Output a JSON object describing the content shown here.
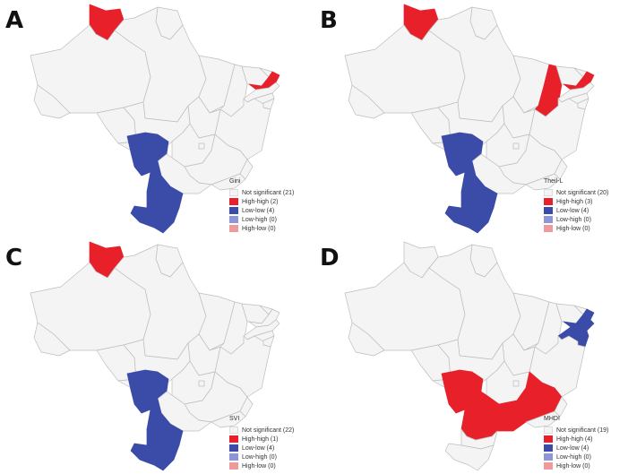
{
  "colors": {
    "not_significant": "#f4f4f4",
    "high_high": "#e8202a",
    "low_low": "#3a4ba8",
    "low_high": "#8e96d8",
    "high_low": "#ef9a9a",
    "state_border": "#bdbdbd"
  },
  "panels": [
    {
      "letter": "A",
      "variable": "Gini",
      "legend": [
        {
          "label": "Not significant (21)",
          "category": "not_significant"
        },
        {
          "label": "High-high (2)",
          "category": "high_high"
        },
        {
          "label": "Low-low (4)",
          "category": "low_low"
        },
        {
          "label": "Low-high (0)",
          "category": "low_high"
        },
        {
          "label": "High-low (0)",
          "category": "high_low"
        }
      ],
      "regions": {
        "high_high": [
          "roraima",
          "paraiba"
        ],
        "low_low": [
          "mato-grosso-do-sul",
          "parana",
          "santa-catarina",
          "rio-grande-do-sul"
        ]
      }
    },
    {
      "letter": "B",
      "variable": "Theil-L",
      "legend": [
        {
          "label": "Not significant (20)",
          "category": "not_significant"
        },
        {
          "label": "High-high (3)",
          "category": "high_high"
        },
        {
          "label": "Low-low (4)",
          "category": "low_low"
        },
        {
          "label": "Low-high (0)",
          "category": "low_high"
        },
        {
          "label": "High-low (0)",
          "category": "high_low"
        }
      ],
      "regions": {
        "high_high": [
          "roraima",
          "piaui",
          "paraiba"
        ],
        "low_low": [
          "mato-grosso-do-sul",
          "parana",
          "santa-catarina",
          "rio-grande-do-sul"
        ]
      }
    },
    {
      "letter": "C",
      "variable": "SVI",
      "legend": [
        {
          "label": "Not significant (22)",
          "category": "not_significant"
        },
        {
          "label": "High-high (1)",
          "category": "high_high"
        },
        {
          "label": "Low-low (4)",
          "category": "low_low"
        },
        {
          "label": "Low-high (0)",
          "category": "low_high"
        },
        {
          "label": "High-low (0)",
          "category": "high_low"
        }
      ],
      "regions": {
        "high_high": [
          "roraima"
        ],
        "low_low": [
          "mato-grosso-do-sul",
          "parana",
          "santa-catarina",
          "rio-grande-do-sul"
        ]
      }
    },
    {
      "letter": "D",
      "variable": "MHDI",
      "legend": [
        {
          "label": "Not significant (19)",
          "category": "not_significant"
        },
        {
          "label": "High-high (4)",
          "category": "high_high"
        },
        {
          "label": "Low-low (4)",
          "category": "low_low"
        },
        {
          "label": "Low-high (0)",
          "category": "low_high"
        },
        {
          "label": "High-low (0)",
          "category": "high_low"
        }
      ],
      "regions": {
        "high_high": [
          "mato-grosso-do-sul",
          "sao-paulo",
          "parana",
          "minas-gerais"
        ],
        "low_low": [
          "pernambuco",
          "paraiba",
          "alagoas",
          "sergipe"
        ]
      }
    }
  ]
}
